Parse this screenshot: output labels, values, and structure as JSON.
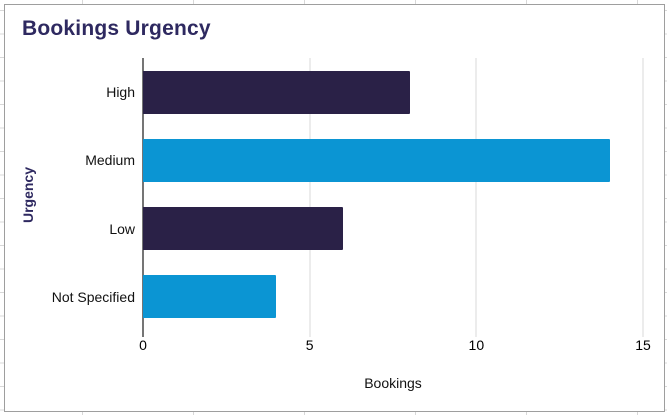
{
  "chart_data": {
    "type": "bar",
    "orientation": "horizontal",
    "title": "Bookings Urgency",
    "xlabel": "Bookings",
    "ylabel": "Urgency",
    "categories": [
      "High",
      "Medium",
      "Low",
      "Not Specified"
    ],
    "values": [
      8,
      14,
      6,
      4
    ],
    "series_colors": [
      "#2a2147",
      "#0b95d3",
      "#2a2147",
      "#0b95d3"
    ],
    "xlim": [
      0,
      15
    ],
    "xticks": [
      0,
      5,
      10,
      15
    ],
    "grid": "vertical-only",
    "legend": "none"
  },
  "colors": {
    "dark_bar": "#2a2147",
    "light_bar": "#0b95d3",
    "heading_text": "#2e2960",
    "axis_line": "#757575",
    "gridline": "#d9d9d9",
    "chart_border": "#9e9e9e",
    "sheet_gridline": "#d8d8d8"
  }
}
